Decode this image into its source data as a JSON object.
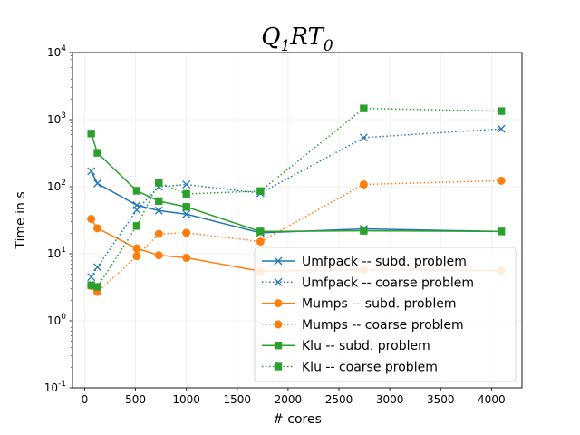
{
  "chart_data": {
    "type": "line",
    "title_main": "Q",
    "title_sub1": "1",
    "title_mid": "RT",
    "title_sub2": "0",
    "xlabel": "# cores",
    "ylabel": "Time in s",
    "yscale": "log",
    "xlim": [
      -120,
      4300
    ],
    "ylim": [
      0.1,
      10000
    ],
    "xticks": [
      0,
      500,
      1000,
      1500,
      2000,
      2500,
      3000,
      3500,
      4000
    ],
    "yticks": [
      0.1,
      1,
      10,
      100,
      1000,
      10000
    ],
    "ytick_exponents": [
      "-1",
      "0",
      "1",
      "2",
      "3",
      "4"
    ],
    "grid": true,
    "legend_position": "lower-right",
    "series": [
      {
        "name": "Umfpack -- subd. problem",
        "color": "#1f77b4",
        "linestyle": "solid",
        "marker": "x",
        "x": [
          64,
          125,
          512,
          729,
          1000,
          1728,
          2744,
          4096
        ],
        "y": [
          170,
          112,
          53,
          44,
          39,
          20.5,
          23.5,
          21.5
        ]
      },
      {
        "name": "Umfpack -- coarse problem",
        "color": "#1f77b4",
        "linestyle": "dotted",
        "marker": "x",
        "x": [
          64,
          125,
          512,
          729,
          1000,
          1728,
          2744,
          4096
        ],
        "y": [
          4.5,
          6.3,
          45,
          100,
          108,
          80,
          540,
          730
        ]
      },
      {
        "name": "Mumps -- subd. problem",
        "color": "#ff7f0e",
        "linestyle": "solid",
        "marker": "o",
        "x": [
          64,
          125,
          512,
          729,
          1000,
          1728,
          2744,
          4096
        ],
        "y": [
          33,
          24,
          12,
          9.5,
          8.7,
          5.5,
          5.8,
          5.6
        ]
      },
      {
        "name": "Mumps -- coarse problem",
        "color": "#ff7f0e",
        "linestyle": "dotted",
        "marker": "o",
        "x": [
          64,
          125,
          512,
          729,
          1000,
          1728,
          2744,
          4096
        ],
        "y": [
          3.3,
          2.7,
          9.2,
          19.8,
          20.5,
          15.2,
          108,
          123
        ]
      },
      {
        "name": "Klu -- subd. problem",
        "color": "#2ca02c",
        "linestyle": "solid",
        "marker": "s",
        "x": [
          64,
          125,
          512,
          729,
          1000,
          1728,
          2744,
          4096
        ],
        "y": [
          620,
          320,
          87,
          61,
          50,
          21.5,
          22,
          21.5
        ]
      },
      {
        "name": "Klu -- coarse problem",
        "color": "#2ca02c",
        "linestyle": "dotted",
        "marker": "s",
        "x": [
          64,
          125,
          512,
          729,
          1000,
          1728,
          2744,
          4096
        ],
        "y": [
          3.4,
          3.2,
          26,
          115,
          78,
          86,
          1470,
          1340
        ]
      }
    ]
  }
}
